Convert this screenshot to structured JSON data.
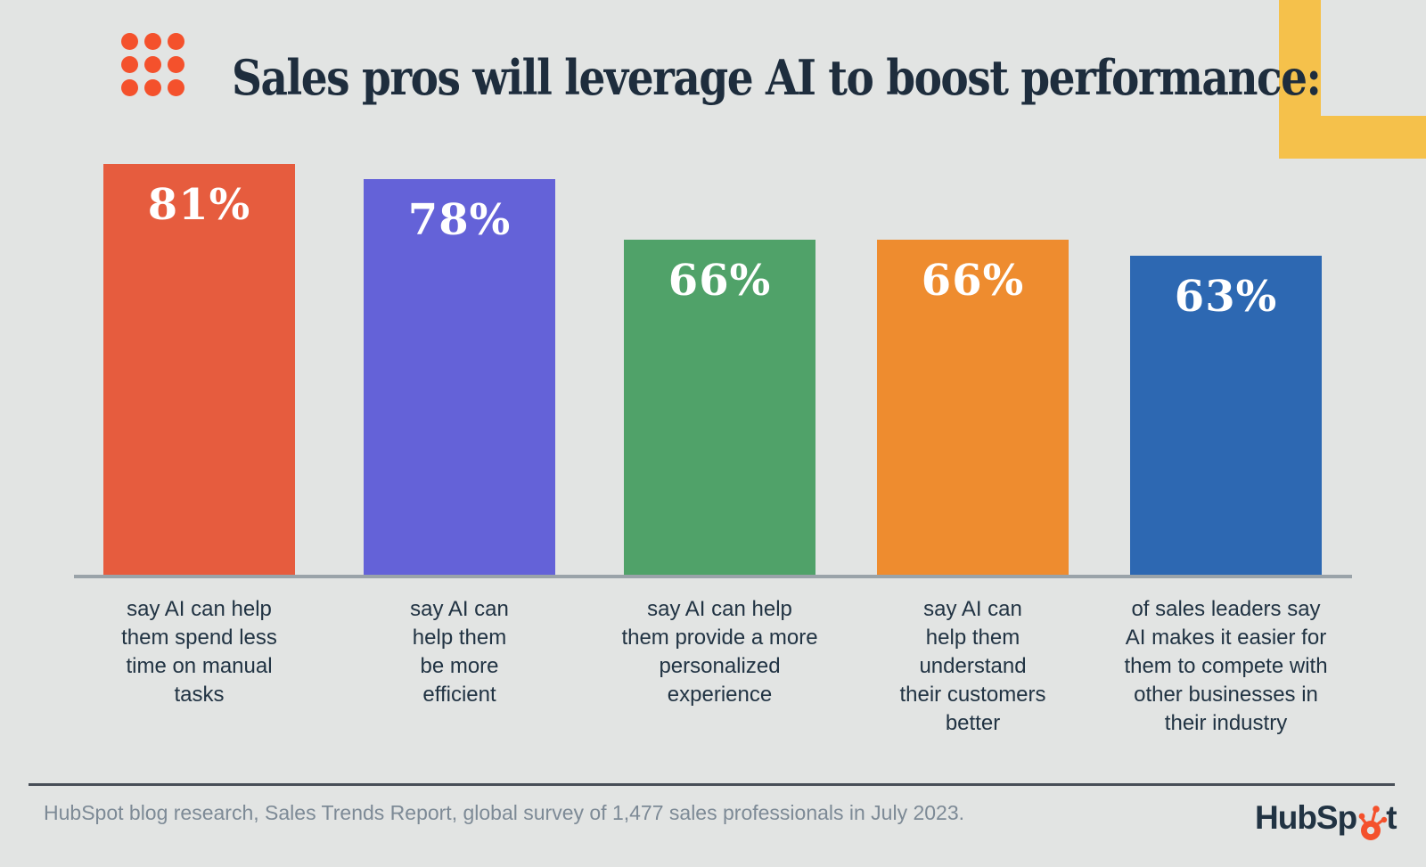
{
  "header": {
    "title": "Sales pros will leverage AI to boost performance:",
    "dot_grid": {
      "rows": 3,
      "cols": 3,
      "color": "#F4512C"
    }
  },
  "decor": {
    "corner_accent_color": "#F5C14B"
  },
  "chart_data": {
    "type": "bar",
    "title": "Sales pros will leverage AI to boost performance:",
    "unit": "percent",
    "ylim": [
      0,
      100
    ],
    "grid": false,
    "legend": "none",
    "value_label_position": "inside-top",
    "categories": [
      "say AI can help them spend less time on manual tasks",
      "say AI can help them be more efficient",
      "say AI can help them provide a more personalized experience",
      "say AI can help them understand their customers better",
      "of sales leaders say AI makes it easier for them to compete with other businesses in their industry"
    ],
    "values": [
      81,
      78,
      66,
      66,
      63
    ],
    "bars": [
      {
        "value": 81,
        "label": "81%",
        "color": "#E65C3E",
        "category_lines": [
          "say AI can help",
          "them spend less",
          "time on manual",
          "tasks"
        ]
      },
      {
        "value": 78,
        "label": "78%",
        "color": "#6462D8",
        "category_lines": [
          "say AI can",
          "help them",
          "be more",
          "efficient"
        ]
      },
      {
        "value": 66,
        "label": "66%",
        "color": "#50A269",
        "category_lines": [
          "say AI can help",
          "them provide a more",
          "personalized",
          "experience"
        ]
      },
      {
        "value": 66,
        "label": "66%",
        "color": "#EE8C2F",
        "category_lines": [
          "say AI can",
          "help them",
          "understand",
          "their customers",
          "better"
        ]
      },
      {
        "value": 63,
        "label": "63%",
        "color": "#2D68B2",
        "category_lines": [
          "of sales leaders say",
          "AI makes it easier for",
          "them to compete with",
          "other businesses in",
          "their industry"
        ]
      }
    ]
  },
  "footer": {
    "source_text": "HubSpot blog research, Sales Trends Report, global survey of 1,477 sales professionals in July 2023.",
    "logo": {
      "brand": "HubSpot",
      "text_before": "HubSp",
      "text_after": "t",
      "text_color": "#213343",
      "sprocket_color": "#F4512C"
    }
  },
  "colors": {
    "background": "#E2E4E3",
    "heading_text": "#1E2D3D",
    "category_text": "#213343",
    "value_text": "#FFFFFF",
    "baseline": "#9AA3A9",
    "footer_rule": "#474E57",
    "footer_text": "#7D8A96"
  }
}
